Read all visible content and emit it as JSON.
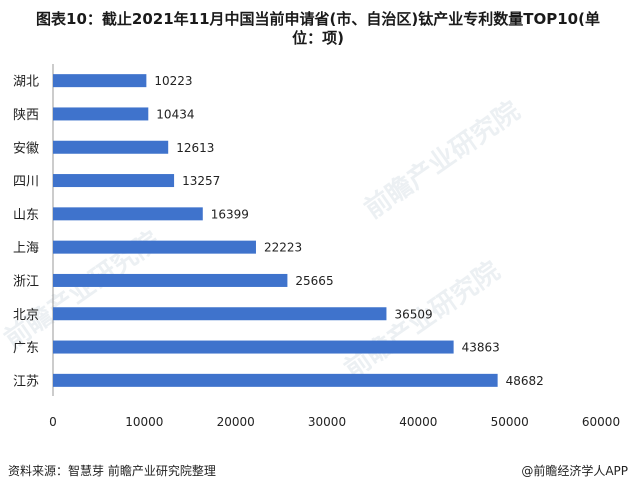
{
  "title_line1": "图表10：截止2021年11月中国当前申请省(市、自治区)钛产业专利数量TOP10(单",
  "title_line2": "位：项)",
  "source": "资料来源：智慧芽 前瞻产业研究院整理",
  "brand": "@前瞻经济学人APP",
  "watermark": "前瞻产业研究院",
  "chart_data": {
    "type": "bar",
    "orientation": "horizontal",
    "categories": [
      "湖北",
      "陕西",
      "安徽",
      "四川",
      "山东",
      "上海",
      "浙江",
      "北京",
      "广东",
      "江苏"
    ],
    "values": [
      10223,
      10434,
      12613,
      13257,
      16399,
      22223,
      25665,
      36509,
      43863,
      48682
    ],
    "xlim": [
      0,
      60000
    ],
    "xticks": [
      0,
      10000,
      20000,
      30000,
      40000,
      50000,
      60000
    ],
    "bar_color": "#3f73cc",
    "data_labels": true,
    "grid": false
  }
}
